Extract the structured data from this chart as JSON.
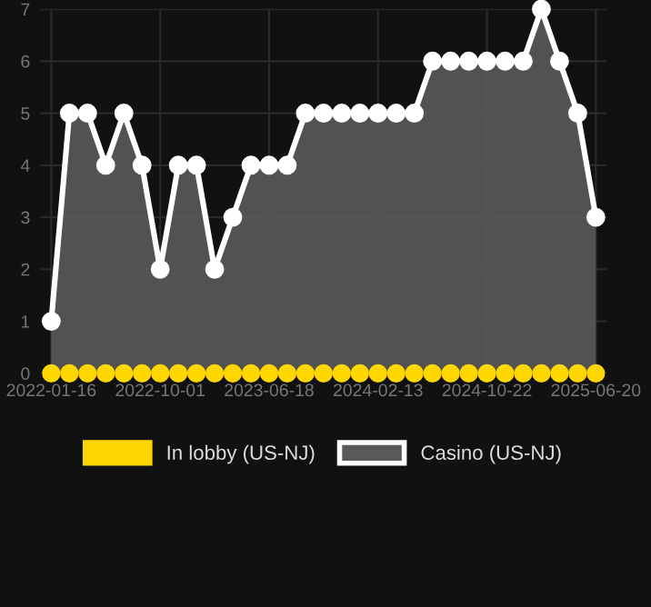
{
  "chart_data": {
    "type": "area",
    "categories": [
      "2022-01-16",
      null,
      null,
      null,
      null,
      null,
      "2022-10-01",
      null,
      null,
      null,
      null,
      null,
      "2023-06-18",
      null,
      null,
      null,
      null,
      null,
      "2024-02-13",
      null,
      null,
      null,
      null,
      null,
      "2024-10-22",
      null,
      null,
      null,
      null,
      null,
      "2025-06-20"
    ],
    "series": [
      {
        "name": "In lobby (US-NJ)",
        "type": "scatter",
        "color": "#ffd700",
        "values": [
          0,
          0,
          0,
          0,
          0,
          0,
          0,
          0,
          0,
          0,
          0,
          0,
          0,
          0,
          0,
          0,
          0,
          0,
          0,
          0,
          0,
          0,
          0,
          0,
          0,
          0,
          0,
          0,
          0,
          0,
          0
        ]
      },
      {
        "name": "Casino (US-NJ)",
        "color": "#ffffff",
        "values": [
          1,
          5,
          5,
          4,
          5,
          4,
          2,
          4,
          4,
          2,
          3,
          4,
          4,
          4,
          5,
          5,
          5,
          5,
          5,
          5,
          5,
          6,
          6,
          6,
          6,
          6,
          6,
          7,
          6,
          5,
          3
        ]
      }
    ],
    "ylim": [
      0,
      7
    ],
    "yticks": [
      0,
      1,
      2,
      3,
      4,
      5,
      6,
      7
    ],
    "grid": true,
    "legend": "bottom",
    "marker": "circle"
  }
}
